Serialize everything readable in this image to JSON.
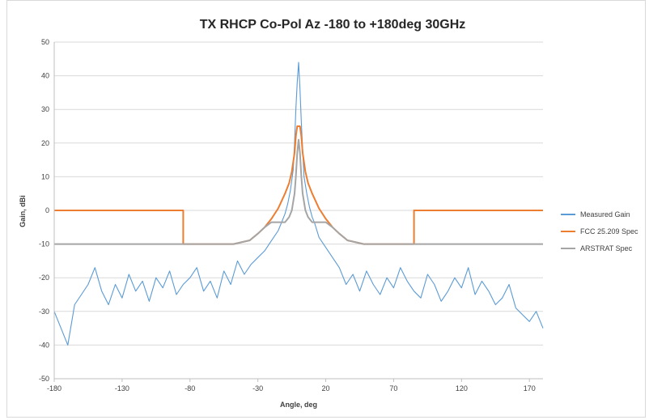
{
  "chart_data": {
    "type": "line",
    "title": "TX RHCP Co-Pol Az -180 to +180deg 30GHz",
    "xlabel": "Angle, deg",
    "ylabel": "Gain, dBi",
    "xlim": [
      -180,
      180
    ],
    "ylim": [
      -50,
      50
    ],
    "xticks": [
      -180,
      -130,
      -80,
      -30,
      20,
      70,
      120,
      170
    ],
    "yticks": [
      -50,
      -40,
      -30,
      -20,
      -10,
      0,
      10,
      20,
      30,
      40,
      50
    ],
    "grid": "horizontal",
    "legend_position": "right",
    "series": [
      {
        "name": "Measured Gain",
        "color": "#5b9bd5",
        "x": [
          -180,
          -175,
          -170,
          -165,
          -160,
          -155,
          -150,
          -145,
          -140,
          -135,
          -130,
          -125,
          -120,
          -115,
          -110,
          -105,
          -100,
          -95,
          -90,
          -85,
          -80,
          -75,
          -70,
          -65,
          -60,
          -55,
          -50,
          -45,
          -40,
          -35,
          -30,
          -25,
          -20,
          -15,
          -12,
          -10,
          -8,
          -6,
          -4,
          -3,
          -2,
          -1,
          0,
          1,
          2,
          3,
          4,
          6,
          8,
          10,
          12,
          15,
          20,
          25,
          30,
          35,
          40,
          45,
          50,
          55,
          60,
          65,
          70,
          75,
          80,
          85,
          90,
          95,
          100,
          105,
          110,
          115,
          120,
          125,
          130,
          135,
          140,
          145,
          150,
          155,
          160,
          165,
          170,
          175,
          180
        ],
        "values": [
          -30,
          -35,
          -40,
          -28,
          -25,
          -22,
          -17,
          -24,
          -28,
          -22,
          -26,
          -19,
          -24,
          -21,
          -27,
          -20,
          -23,
          -18,
          -25,
          -22,
          -20,
          -17,
          -24,
          -21,
          -26,
          -18,
          -22,
          -15,
          -19,
          -16,
          -14,
          -12,
          -9,
          -6,
          -3,
          -1,
          2,
          6,
          12,
          20,
          30,
          38,
          44,
          36,
          26,
          18,
          10,
          5,
          1,
          -2,
          -4,
          -8,
          -11,
          -14,
          -17,
          -22,
          -19,
          -24,
          -18,
          -22,
          -25,
          -20,
          -23,
          -17,
          -21,
          -24,
          -26,
          -19,
          -22,
          -27,
          -24,
          -20,
          -23,
          -17,
          -25,
          -21,
          -24,
          -28,
          -26,
          -22,
          -29,
          -31,
          -33,
          -30,
          -35
        ]
      },
      {
        "name": "FCC 25.209 Spec",
        "color": "#ed7d31",
        "x": [
          -180,
          -85,
          -85,
          -48,
          -36,
          -30,
          -25,
          -20,
          -15,
          -10,
          -7,
          -5,
          -3,
          -2,
          -1,
          0,
          1,
          2,
          3,
          5,
          7,
          10,
          15,
          20,
          25,
          30,
          36,
          48,
          85,
          85,
          180
        ],
        "values": [
          0,
          0,
          -10,
          -10,
          -8.9,
          -6.9,
          -5,
          -2.5,
          0.6,
          5,
          8.1,
          11.5,
          17.1,
          22,
          25,
          25,
          25,
          22,
          17.1,
          11.5,
          8.1,
          5,
          0.6,
          -2.5,
          -5,
          -6.9,
          -8.9,
          -10,
          -10,
          0,
          0
        ]
      },
      {
        "name": "ARSTRAT Spec",
        "color": "#a5a5a5",
        "x": [
          -180,
          -48,
          -36,
          -30,
          -25,
          -20,
          -15,
          -10,
          -7,
          -5,
          -3,
          -2,
          -1,
          0,
          1,
          2,
          3,
          5,
          7,
          10,
          15,
          20,
          25,
          30,
          36,
          48,
          180
        ],
        "values": [
          -10,
          -10,
          -8.9,
          -6.9,
          -5,
          -3.5,
          -3.5,
          -3.5,
          -2,
          0,
          5,
          10,
          17,
          21,
          17,
          10,
          5,
          0,
          -2,
          -3.5,
          -3.5,
          -3.5,
          -5,
          -6.9,
          -8.9,
          -10,
          -10
        ]
      }
    ]
  }
}
